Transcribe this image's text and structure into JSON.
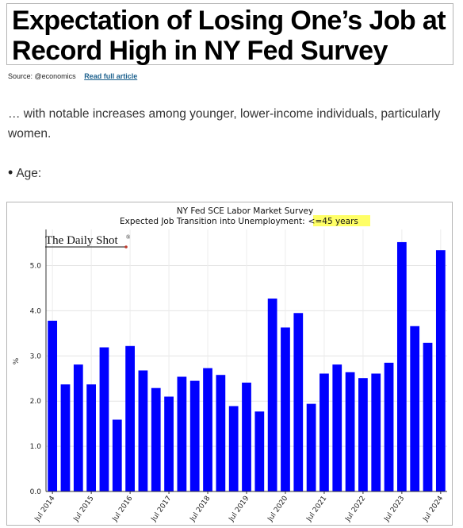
{
  "article": {
    "headline": "Expectation of Losing One’s Job at\nRecord High in NY Fed Survey",
    "source": "Source: @economics",
    "read_link": "Read full article",
    "intro": "… with notable increases among younger, lower-income individuals, particularly women.",
    "bullet_bullet": "•",
    "bullet": "Age:"
  },
  "chart": {
    "logo": "The Daily Shot",
    "logo_mark": "®"
  },
  "colors": {
    "bar": "#0000ff",
    "highlight": "#ffff66",
    "link": "#1a5f8c"
  },
  "chart_data": {
    "type": "bar",
    "title": "NY Fed SCE Labor Market Survey",
    "subtitle": "Expected Job Transition into Unemployment:",
    "subtitle_highlight": "<=45 years",
    "xlabel": "",
    "ylabel": "%",
    "ylim": [
      0,
      5.8
    ],
    "yticks": [
      "0.0",
      "1.0",
      "2.0",
      "3.0",
      "4.0",
      "5.0"
    ],
    "xtick_labels": [
      "Jul 2014",
      "Jul 2015",
      "Jul 2016",
      "Jul 2017",
      "Jul 2018",
      "Jul 2019",
      "Jul 2020",
      "Jul 2021",
      "Jul 2022",
      "Jul 2023",
      "Jul 2024"
    ],
    "grid": true,
    "values": [
      3.78,
      2.37,
      2.81,
      2.37,
      3.19,
      1.59,
      3.22,
      2.68,
      2.29,
      2.1,
      2.54,
      2.45,
      2.73,
      2.58,
      1.89,
      2.41,
      1.77,
      4.27,
      3.63,
      3.95,
      1.94,
      2.61,
      2.81,
      2.64,
      2.51,
      2.61,
      2.85,
      5.52,
      3.66,
      3.29,
      5.34
    ]
  }
}
